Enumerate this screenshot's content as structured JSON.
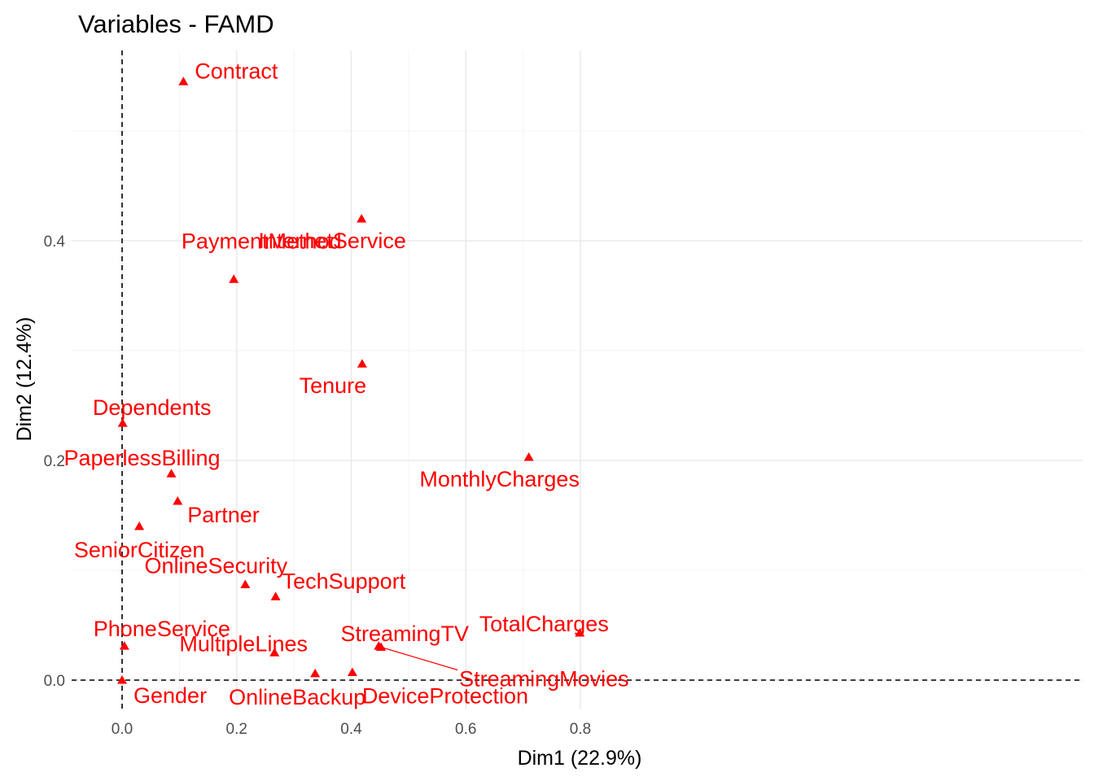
{
  "chart_data": {
    "type": "scatter",
    "title": "Variables - FAMD",
    "xlabel": "Dim1 (22.9%)",
    "ylabel": "Dim2 (12.4%)",
    "xlim": [
      -0.04,
      0.84
    ],
    "ylim": [
      -0.025,
      0.575
    ],
    "x_ticks": [
      0.0,
      0.2,
      0.4,
      0.6,
      0.8
    ],
    "x_tick_labels": [
      "0.0",
      "0.2",
      "0.4",
      "0.6",
      "0.8"
    ],
    "y_ticks": [
      0.0,
      0.2,
      0.4
    ],
    "y_tick_labels": [
      "0.0",
      "0.2",
      "0.4"
    ],
    "grid": true,
    "reference_lines": {
      "x": 0,
      "y": 0,
      "style": "dashed"
    },
    "point_color": "#ff0000",
    "marker": "triangle",
    "points": [
      {
        "label": "Contract",
        "x": 0.107,
        "y": 0.545
      },
      {
        "label": "InternetService",
        "x": 0.418,
        "y": 0.42
      },
      {
        "label": "PaymentMethod",
        "x": 0.195,
        "y": 0.365
      },
      {
        "label": "Tenure",
        "x": 0.419,
        "y": 0.288
      },
      {
        "label": "Dependents",
        "x": 0.001,
        "y": 0.234
      },
      {
        "label": "MonthlyCharges",
        "x": 0.71,
        "y": 0.203
      },
      {
        "label": "PaperlessBilling",
        "x": 0.086,
        "y": 0.188
      },
      {
        "label": "Partner",
        "x": 0.097,
        "y": 0.163
      },
      {
        "label": "SeniorCitizen",
        "x": 0.03,
        "y": 0.14
      },
      {
        "label": "OnlineSecurity",
        "x": 0.215,
        "y": 0.087
      },
      {
        "label": "TechSupport",
        "x": 0.268,
        "y": 0.076
      },
      {
        "label": "TotalCharges",
        "x": 0.799,
        "y": 0.043
      },
      {
        "label": "StreamingTV",
        "x": 0.448,
        "y": 0.031
      },
      {
        "label": "StreamingMovies",
        "x": 0.452,
        "y": 0.03
      },
      {
        "label": "PhoneService",
        "x": 0.004,
        "y": 0.031
      },
      {
        "label": "MultipleLines",
        "x": 0.266,
        "y": 0.025
      },
      {
        "label": "OnlineBackup",
        "x": 0.337,
        "y": 0.006
      },
      {
        "label": "DeviceProtection",
        "x": 0.402,
        "y": 0.007
      },
      {
        "label": "Gender",
        "x": 0.0,
        "y": 0.0
      }
    ]
  }
}
